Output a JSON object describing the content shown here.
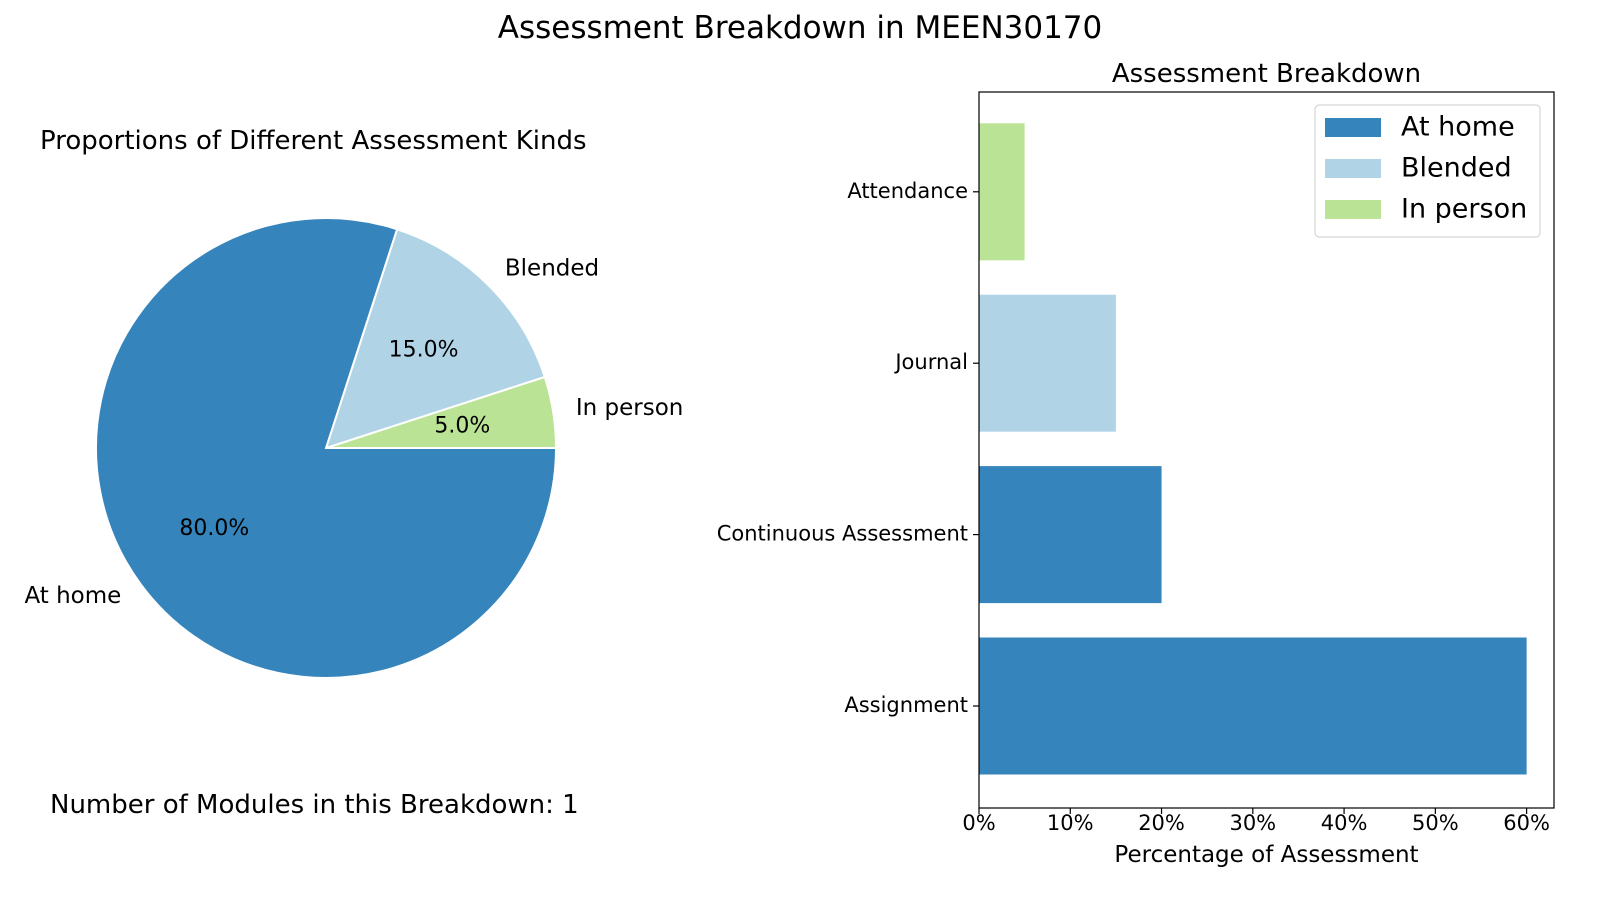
{
  "figure_title": "Assessment Breakdown in MEEN30170",
  "pie_panel": {
    "title": "Proportions of Different Assessment Kinds",
    "footer_label": "Number of Modules in this Breakdown: 1"
  },
  "colors": {
    "at_home": "#3584bb",
    "blended": "#b0d4e6",
    "in_person": "#bbe395",
    "axis": "#000000"
  },
  "chart_data": [
    {
      "type": "pie",
      "title": "Proportions of Different Assessment Kinds",
      "slices": [
        {
          "label": "In person",
          "value": 5.0,
          "pct_label": "5.0%",
          "color": "#bbe395"
        },
        {
          "label": "Blended",
          "value": 15.0,
          "pct_label": "15.0%",
          "color": "#b0d4e6"
        },
        {
          "label": "At home",
          "value": 80.0,
          "pct_label": "80.0%",
          "color": "#3584bb"
        }
      ]
    },
    {
      "type": "bar",
      "orientation": "horizontal",
      "title": "Assessment Breakdown",
      "xlabel": "Percentage of Assessment",
      "ylabel": "",
      "xlim": [
        0,
        63
      ],
      "xticks": [
        0,
        10,
        20,
        30,
        40,
        50,
        60
      ],
      "xtick_labels": [
        "0%",
        "10%",
        "20%",
        "30%",
        "40%",
        "50%",
        "60%"
      ],
      "categories": [
        "Assignment",
        "Continuous Assessment",
        "Journal",
        "Attendance"
      ],
      "values": [
        60,
        20,
        15,
        5
      ],
      "kinds": [
        "At home",
        "At home",
        "Blended",
        "In person"
      ],
      "legend": {
        "position": "upper-right",
        "entries": [
          {
            "label": "At home",
            "color": "#3584bb"
          },
          {
            "label": "Blended",
            "color": "#b0d4e6"
          },
          {
            "label": "In person",
            "color": "#bbe395"
          }
        ]
      }
    }
  ]
}
